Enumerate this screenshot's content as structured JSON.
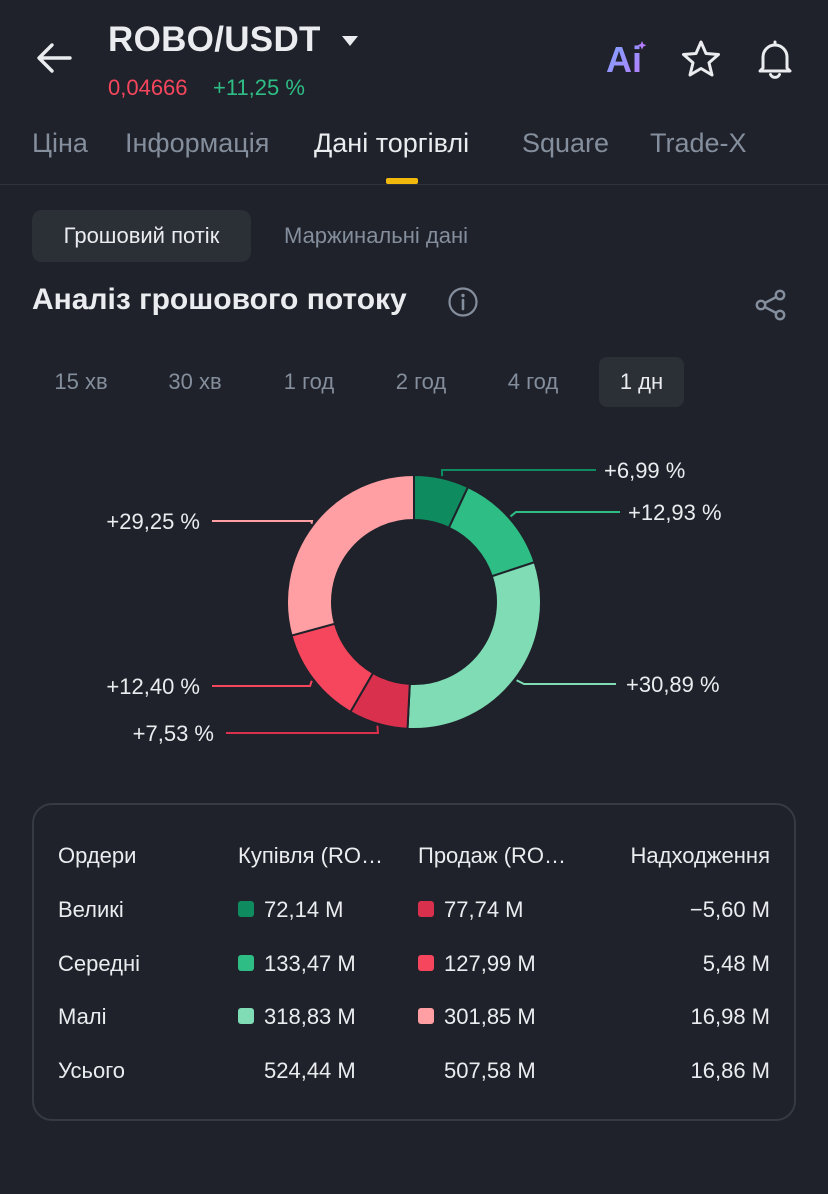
{
  "header": {
    "pair": "ROBO/USDT",
    "price": "0,04666",
    "change": "+11,25 %",
    "ai_label": "Ai"
  },
  "tabs": [
    {
      "label": "Ціна",
      "active": false
    },
    {
      "label": "Інформація",
      "active": false
    },
    {
      "label": "Дані торгівлі",
      "active": true
    },
    {
      "label": "Square",
      "active": false
    },
    {
      "label": "Trade-X",
      "active": false
    }
  ],
  "subtabs": [
    {
      "label": "Грошовий потік",
      "active": true
    },
    {
      "label": "Маржинальні дані",
      "active": false
    }
  ],
  "section_title": "Аналіз грошового потоку",
  "intervals": [
    {
      "label": "15 хв",
      "active": false
    },
    {
      "label": "30 хв",
      "active": false
    },
    {
      "label": "1 год",
      "active": false
    },
    {
      "label": "2 год",
      "active": false
    },
    {
      "label": "4 год",
      "active": false
    },
    {
      "label": "1 дн",
      "active": true
    }
  ],
  "colors": {
    "buy_large": "#0e8c5f",
    "buy_medium": "#2ebd85",
    "buy_small": "#7fdcb5",
    "sell_large": "#d9304e",
    "sell_medium": "#f6465d",
    "sell_small": "#ff9ea3",
    "accent": "#f0b90b"
  },
  "chart_data": {
    "type": "pie",
    "slices": [
      {
        "label": "+6,99 %",
        "value": 6.99,
        "color": "#0e8c5f"
      },
      {
        "label": "+12,93 %",
        "value": 12.93,
        "color": "#2ebd85"
      },
      {
        "label": "+30,89 %",
        "value": 30.89,
        "color": "#7fdcb5"
      },
      {
        "label": "+7,53 %",
        "value": 7.53,
        "color": "#d9304e"
      },
      {
        "label": "+12,40 %",
        "value": 12.4,
        "color": "#f6465d"
      },
      {
        "label": "+29,25 %",
        "value": 29.25,
        "color": "#ff9ea3"
      }
    ]
  },
  "table": {
    "headers": [
      "Ордери",
      "Купівля (RO…",
      "Продаж (RO…",
      "Надходження"
    ],
    "rows": [
      {
        "name": "Великі",
        "buy": "72,14 M",
        "sell": "77,74 M",
        "net": "−5,60 M",
        "buy_color": "#0e8c5f",
        "sell_color": "#d9304e"
      },
      {
        "name": "Середні",
        "buy": "133,47 M",
        "sell": "127,99 M",
        "net": "5,48 M",
        "buy_color": "#2ebd85",
        "sell_color": "#f6465d"
      },
      {
        "name": "Малі",
        "buy": "318,83 M",
        "sell": "301,85 M",
        "net": "16,98 M",
        "buy_color": "#7fdcb5",
        "sell_color": "#ff9ea3"
      },
      {
        "name": "Усього",
        "buy": "524,44 M",
        "sell": "507,58 M",
        "net": "16,86 M",
        "buy_color": "",
        "sell_color": ""
      }
    ]
  }
}
